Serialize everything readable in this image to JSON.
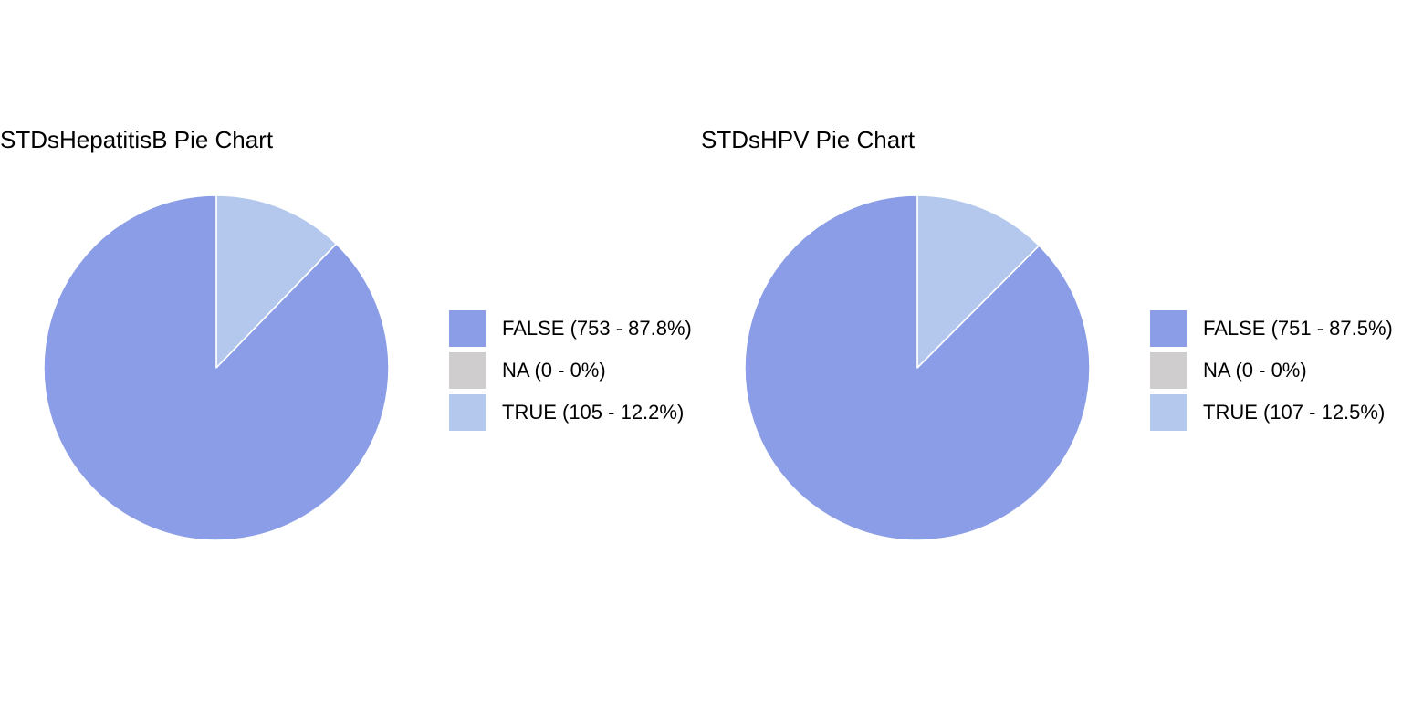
{
  "chart_data": [
    {
      "type": "pie",
      "title": "STDsHepatitisB Pie Chart",
      "categories": [
        "FALSE",
        "NA",
        "TRUE"
      ],
      "values": [
        753,
        0,
        105
      ],
      "percentages": [
        87.8,
        0,
        12.2
      ],
      "legend_labels": [
        "FALSE (753 - 87.8%)",
        "NA (0 - 0%)",
        "TRUE (105 - 12.2%)"
      ],
      "colors": [
        "#8A9DE6",
        "#D0CDCE",
        "#B3C8EC"
      ],
      "slice_border_color": "#FFFFFF",
      "start_angle": "12 o'clock",
      "direction": "counterclockwise",
      "legend_position": "right"
    },
    {
      "type": "pie",
      "title": "STDsHPV Pie Chart",
      "categories": [
        "FALSE",
        "NA",
        "TRUE"
      ],
      "values": [
        751,
        0,
        107
      ],
      "percentages": [
        87.5,
        0,
        12.5
      ],
      "legend_labels": [
        "FALSE (751 - 87.5%)",
        "NA (0 - 0%)",
        "TRUE (107 - 12.5%)"
      ],
      "colors": [
        "#8A9DE6",
        "#D0CDCE",
        "#B3C8EC"
      ],
      "slice_border_color": "#FFFFFF",
      "start_angle": "12 o'clock",
      "direction": "counterclockwise",
      "legend_position": "right"
    }
  ]
}
